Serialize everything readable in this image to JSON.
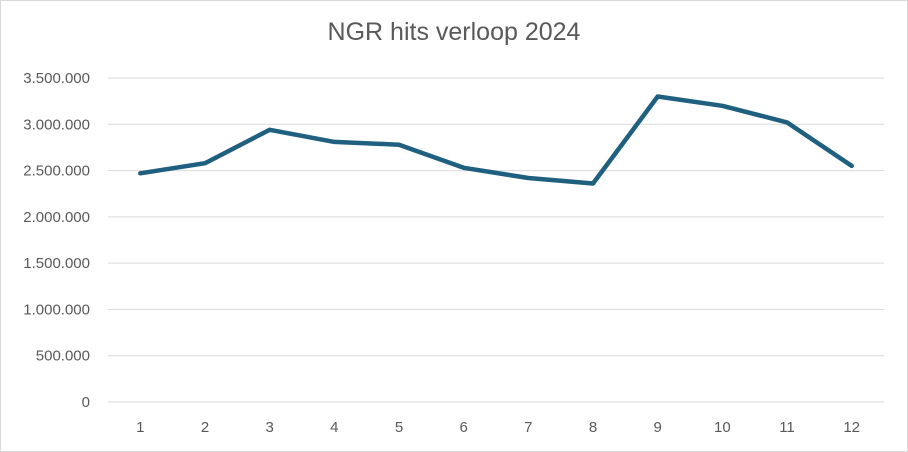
{
  "chart_data": {
    "type": "line",
    "title": "NGR hits verloop 2024",
    "xlabel": "",
    "ylabel": "",
    "categories": [
      "1",
      "2",
      "3",
      "4",
      "5",
      "6",
      "7",
      "8",
      "9",
      "10",
      "11",
      "12"
    ],
    "series": [
      {
        "values": [
          2470000,
          2580000,
          2940000,
          2810000,
          2780000,
          2530000,
          2420000,
          2360000,
          3300000,
          3200000,
          3020000,
          2550000
        ],
        "color": "#1f5f7f"
      }
    ],
    "ylim": [
      0,
      3500000
    ],
    "yticks": [
      0,
      500000,
      1000000,
      1500000,
      2000000,
      2500000,
      3000000,
      3500000
    ],
    "ytick_labels": [
      "0",
      "500.000",
      "1.000.000",
      "1.500.000",
      "2.000.000",
      "2.500.000",
      "3.000.000",
      "3.500.000"
    ],
    "grid": true,
    "legend": "none",
    "gridline_color": "#d9d9d9",
    "axis_label_color": "#595959"
  }
}
